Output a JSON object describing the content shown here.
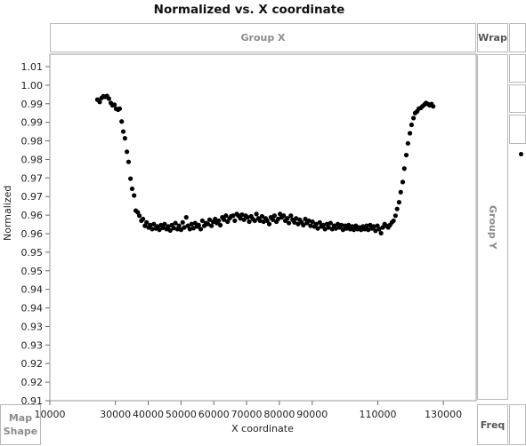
{
  "chart_data": {
    "type": "scatter",
    "title": "Normalized vs. X coordinate",
    "xlabel": "X coordinate",
    "ylabel": "Normalized",
    "xlim": [
      10000,
      140000
    ],
    "ylim": [
      0.909,
      1.012
    ],
    "x_ticks": [
      "10000",
      "30000",
      "40000",
      "50000",
      "60000",
      "70000",
      "80000",
      "90000",
      "110000",
      "130000"
    ],
    "y_ticks": [
      "0.91",
      "0.92",
      "0.92",
      "0.93",
      "0.93",
      "0.94",
      "0.94",
      "0.95",
      "0.95",
      "0.96",
      "0.96",
      "0.97",
      "0.97",
      "0.98",
      "0.98",
      "0.99",
      "0.99",
      "1.00",
      "1.01"
    ],
    "points": [
      [
        24500,
        0.9985
      ],
      [
        25200,
        0.9978
      ],
      [
        25800,
        0.999
      ],
      [
        26300,
        0.9995
      ],
      [
        26900,
        0.9993
      ],
      [
        27400,
        0.9996
      ],
      [
        28000,
        0.9988
      ],
      [
        28600,
        0.9975
      ],
      [
        29100,
        0.9968
      ],
      [
        29700,
        0.997
      ],
      [
        30200,
        0.9958
      ],
      [
        30800,
        0.9955
      ],
      [
        31300,
        0.9958
      ],
      [
        31900,
        0.992
      ],
      [
        32400,
        0.989
      ],
      [
        32900,
        0.987
      ],
      [
        33500,
        0.983
      ],
      [
        34000,
        0.98
      ],
      [
        34600,
        0.975
      ],
      [
        35100,
        0.972
      ],
      [
        35700,
        0.97
      ],
      [
        36200,
        0.9655
      ],
      [
        36800,
        0.965
      ],
      [
        37300,
        0.964
      ],
      [
        37900,
        0.9625
      ],
      [
        38400,
        0.963
      ],
      [
        39000,
        0.961
      ],
      [
        39500,
        0.962
      ],
      [
        40100,
        0.9605
      ],
      [
        40600,
        0.9612
      ],
      [
        41200,
        0.96
      ],
      [
        41700,
        0.9615
      ],
      [
        42300,
        0.9602
      ],
      [
        42800,
        0.9608
      ],
      [
        43400,
        0.9598
      ],
      [
        43900,
        0.9612
      ],
      [
        44500,
        0.9604
      ],
      [
        45000,
        0.9615
      ],
      [
        45600,
        0.96
      ],
      [
        46100,
        0.9608
      ],
      [
        46700,
        0.9596
      ],
      [
        47200,
        0.9612
      ],
      [
        47800,
        0.9603
      ],
      [
        48300,
        0.9618
      ],
      [
        48900,
        0.96
      ],
      [
        49400,
        0.961
      ],
      [
        50000,
        0.9598
      ],
      [
        50500,
        0.962
      ],
      [
        51000,
        0.9605
      ],
      [
        51600,
        0.9635
      ],
      [
        52100,
        0.961
      ],
      [
        52700,
        0.96
      ],
      [
        53200,
        0.9615
      ],
      [
        53800,
        0.9603
      ],
      [
        54300,
        0.9618
      ],
      [
        54900,
        0.9608
      ],
      [
        55400,
        0.9612
      ],
      [
        56000,
        0.96
      ],
      [
        56500,
        0.9625
      ],
      [
        57100,
        0.961
      ],
      [
        57600,
        0.9618
      ],
      [
        58200,
        0.9615
      ],
      [
        58700,
        0.9628
      ],
      [
        59300,
        0.961
      ],
      [
        59800,
        0.9622
      ],
      [
        60400,
        0.963
      ],
      [
        60900,
        0.9618
      ],
      [
        61500,
        0.9625
      ],
      [
        62000,
        0.9612
      ],
      [
        62600,
        0.9635
      ],
      [
        63100,
        0.9628
      ],
      [
        63700,
        0.964
      ],
      [
        64200,
        0.9622
      ],
      [
        64800,
        0.9632
      ],
      [
        65300,
        0.9638
      ],
      [
        65900,
        0.964
      ],
      [
        66400,
        0.9625
      ],
      [
        67000,
        0.9645
      ],
      [
        67500,
        0.964
      ],
      [
        68100,
        0.9632
      ],
      [
        68600,
        0.9643
      ],
      [
        69200,
        0.9628
      ],
      [
        69700,
        0.964
      ],
      [
        70300,
        0.9635
      ],
      [
        70800,
        0.9622
      ],
      [
        71400,
        0.9638
      ],
      [
        71900,
        0.963
      ],
      [
        72500,
        0.9625
      ],
      [
        73000,
        0.9645
      ],
      [
        73600,
        0.9632
      ],
      [
        74100,
        0.9625
      ],
      [
        74700,
        0.9638
      ],
      [
        75200,
        0.9622
      ],
      [
        75800,
        0.9632
      ],
      [
        76300,
        0.9625
      ],
      [
        76900,
        0.9615
      ],
      [
        77400,
        0.9635
      ],
      [
        78000,
        0.9628
      ],
      [
        78500,
        0.964
      ],
      [
        79100,
        0.9622
      ],
      [
        79600,
        0.963
      ],
      [
        80200,
        0.9645
      ],
      [
        80700,
        0.9635
      ],
      [
        81300,
        0.964
      ],
      [
        81800,
        0.9625
      ],
      [
        82400,
        0.9632
      ],
      [
        82900,
        0.9618
      ],
      [
        83500,
        0.964
      ],
      [
        84000,
        0.9628
      ],
      [
        84600,
        0.962
      ],
      [
        85100,
        0.9632
      ],
      [
        85700,
        0.9615
      ],
      [
        86200,
        0.9628
      ],
      [
        86800,
        0.962
      ],
      [
        87300,
        0.9612
      ],
      [
        87900,
        0.963
      ],
      [
        88400,
        0.9618
      ],
      [
        89000,
        0.9625
      ],
      [
        89500,
        0.961
      ],
      [
        90100,
        0.9622
      ],
      [
        90600,
        0.9608
      ],
      [
        91200,
        0.9615
      ],
      [
        91700,
        0.9602
      ],
      [
        92300,
        0.962
      ],
      [
        92800,
        0.9608
      ],
      [
        93400,
        0.9612
      ],
      [
        93900,
        0.96
      ],
      [
        94500,
        0.9615
      ],
      [
        95000,
        0.9605
      ],
      [
        95600,
        0.9618
      ],
      [
        96100,
        0.96
      ],
      [
        96700,
        0.961
      ],
      [
        97200,
        0.9602
      ],
      [
        97800,
        0.9615
      ],
      [
        98300,
        0.9605
      ],
      [
        98900,
        0.9612
      ],
      [
        99400,
        0.9598
      ],
      [
        100000,
        0.961
      ],
      [
        100500,
        0.9602
      ],
      [
        101100,
        0.9612
      ],
      [
        101600,
        0.96
      ],
      [
        102200,
        0.9608
      ],
      [
        102700,
        0.9598
      ],
      [
        103300,
        0.961
      ],
      [
        103800,
        0.96
      ],
      [
        104400,
        0.9605
      ],
      [
        104900,
        0.9598
      ],
      [
        105500,
        0.9608
      ],
      [
        106000,
        0.96
      ],
      [
        106600,
        0.961
      ],
      [
        107100,
        0.9598
      ],
      [
        107700,
        0.9612
      ],
      [
        108200,
        0.9602
      ],
      [
        108800,
        0.9608
      ],
      [
        109300,
        0.9595
      ],
      [
        109900,
        0.961
      ],
      [
        110400,
        0.96
      ],
      [
        111000,
        0.9588
      ],
      [
        111500,
        0.9605
      ],
      [
        112100,
        0.9615
      ],
      [
        112600,
        0.961
      ],
      [
        113200,
        0.9605
      ],
      [
        113700,
        0.9612
      ],
      [
        114300,
        0.962
      ],
      [
        114800,
        0.9625
      ],
      [
        115400,
        0.964
      ],
      [
        115900,
        0.966
      ],
      [
        116500,
        0.968
      ],
      [
        117000,
        0.971
      ],
      [
        117600,
        0.974
      ],
      [
        118100,
        0.978
      ],
      [
        118700,
        0.982
      ],
      [
        119200,
        0.9855
      ],
      [
        119800,
        0.9885
      ],
      [
        120300,
        0.991
      ],
      [
        120900,
        0.993
      ],
      [
        121400,
        0.9945
      ],
      [
        122000,
        0.995
      ],
      [
        122500,
        0.9958
      ],
      [
        123100,
        0.996
      ],
      [
        123600,
        0.9965
      ],
      [
        124200,
        0.997
      ],
      [
        124700,
        0.9975
      ],
      [
        125300,
        0.9972
      ],
      [
        125800,
        0.9968
      ],
      [
        126400,
        0.9972
      ],
      [
        126900,
        0.9965
      ]
    ]
  },
  "zones": {
    "group_x": "Group X",
    "wrap": "Wrap",
    "group_y": "Group Y",
    "map_shape": "Map\nShape",
    "freq": "Freq"
  }
}
